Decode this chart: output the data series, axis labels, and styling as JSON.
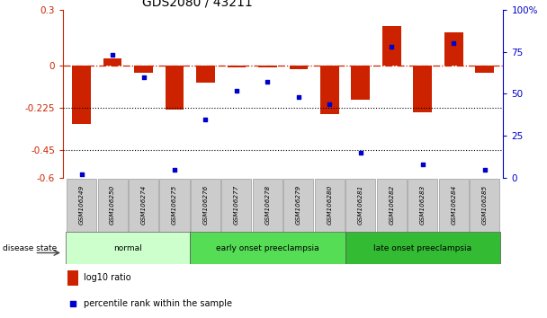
{
  "title": "GDS2080 / 43211",
  "samples": [
    "GSM106249",
    "GSM106250",
    "GSM106274",
    "GSM106275",
    "GSM106276",
    "GSM106277",
    "GSM106278",
    "GSM106279",
    "GSM106280",
    "GSM106281",
    "GSM106282",
    "GSM106283",
    "GSM106284",
    "GSM106285"
  ],
  "log10_ratio": [
    -0.31,
    0.04,
    -0.04,
    -0.235,
    -0.09,
    -0.01,
    -0.01,
    -0.02,
    -0.26,
    -0.18,
    0.21,
    -0.25,
    0.18,
    -0.04
  ],
  "percentile_rank": [
    2,
    73,
    60,
    5,
    35,
    52,
    57,
    48,
    44,
    15,
    78,
    8,
    80,
    5
  ],
  "ylim_left": [
    -0.6,
    0.3
  ],
  "ylim_right": [
    0,
    100
  ],
  "yticks_left": [
    -0.6,
    -0.45,
    -0.225,
    0,
    0.3
  ],
  "yticks_left_labels": [
    "-0.6",
    "-0.45",
    "-0.225",
    "0",
    "0.3"
  ],
  "yticks_right": [
    0,
    25,
    50,
    75,
    100
  ],
  "yticks_right_labels": [
    "0",
    "25",
    "50",
    "75",
    "100%"
  ],
  "hlines": [
    -0.225,
    -0.45
  ],
  "groups": [
    {
      "label": "normal",
      "start": 0,
      "end": 4,
      "color": "#ccffcc"
    },
    {
      "label": "early onset preeclampsia",
      "start": 4,
      "end": 9,
      "color": "#55dd55"
    },
    {
      "label": "late onset preeclampsia",
      "start": 9,
      "end": 14,
      "color": "#33bb33"
    }
  ],
  "bar_color": "#cc2200",
  "scatter_color": "#0000cc",
  "zero_line_color": "#cc2200",
  "dotted_line_color": "#000000",
  "background_color": "#ffffff",
  "title_fontsize": 10,
  "legend_items": [
    "log10 ratio",
    "percentile rank within the sample"
  ]
}
